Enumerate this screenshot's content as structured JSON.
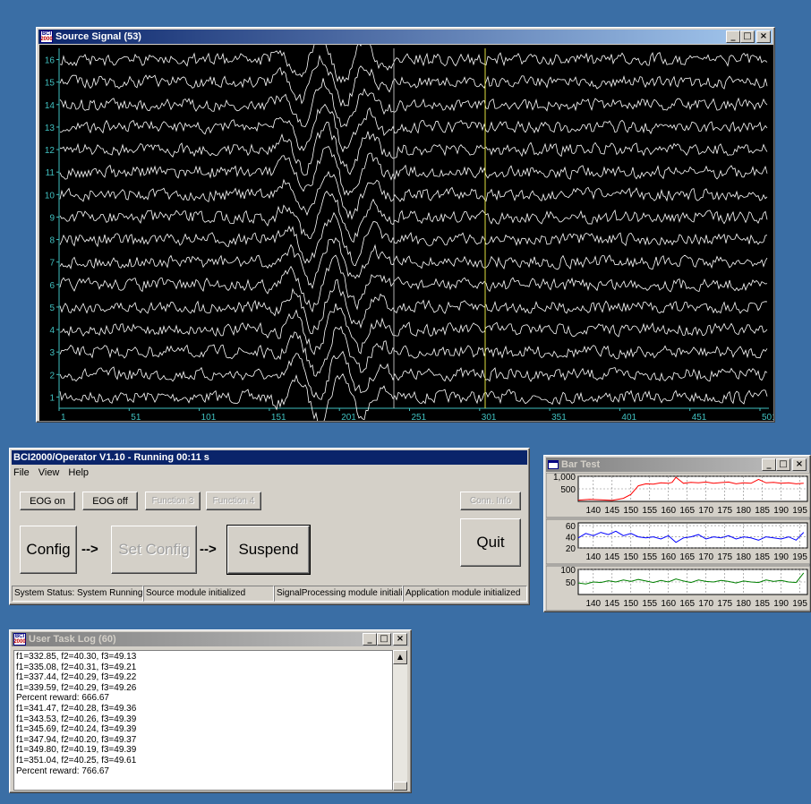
{
  "source_window": {
    "title": "Source Signal (53)",
    "channel_labels": [
      "1",
      "2",
      "3",
      "4",
      "5",
      "6",
      "7",
      "8",
      "9",
      "10",
      "11",
      "12",
      "13",
      "14",
      "15",
      "16"
    ],
    "sample_ticks": [
      "1",
      "51",
      "101",
      "151",
      "201",
      "251",
      "301",
      "351",
      "401",
      "451",
      "501"
    ],
    "trace_color": "#ffffff",
    "axis_color": "#40c0c0",
    "cursor_color": "#e0e040"
  },
  "operator_window": {
    "title": "BCI2000/Operator V1.10 - Running 00:11 s",
    "menu": [
      "File",
      "View",
      "Help"
    ],
    "buttons": {
      "eog_on": "EOG on",
      "eog_off": "EOG off",
      "function3": "Function 3",
      "function4": "Function 4",
      "conn_info": "Conn. Info",
      "config": "Config",
      "set_config": "Set Config",
      "suspend": "Suspend",
      "quit": "Quit",
      "arrow1": "-->",
      "arrow2": "-->"
    },
    "status": [
      "System Status: System Running",
      "Source module initialized",
      "SignalProcessing module initialized",
      "Application module initialized"
    ]
  },
  "log_window": {
    "title": "User Task Log (60)",
    "lines": [
      "f1=332.85, f2=40.30, f3=49.13",
      "f1=335.08, f2=40.31, f3=49.21",
      "f1=337.44, f2=40.29, f3=49.22",
      "f1=339.59, f2=40.29, f3=49.26",
      "Percent reward: 666.67",
      "f1=341.47, f2=40.28, f3=49.36",
      "f1=343.53, f2=40.26, f3=49.39",
      "f1=345.69, f2=40.24, f3=49.39",
      "f1=347.94, f2=40.20, f3=49.37",
      "f1=349.80, f2=40.19, f3=49.39",
      "f1=351.04, f2=40.25, f3=49.61",
      "Percent reward: 766.67"
    ]
  },
  "bar_window": {
    "title": "Bar Test",
    "x_ticks": [
      "140",
      "145",
      "150",
      "155",
      "160",
      "165",
      "170",
      "175",
      "180",
      "185",
      "190",
      "195"
    ]
  },
  "chart_data": [
    {
      "type": "line",
      "color": "#ff0000",
      "ylim": [
        0,
        1000
      ],
      "y_ticks": [
        "1,000",
        "500"
      ],
      "xlim": [
        136,
        197
      ],
      "series": [
        {
          "x": [
            136,
            139,
            142,
            145,
            148,
            150,
            152,
            154,
            156,
            158,
            160,
            161,
            162,
            164,
            166,
            168,
            170,
            172,
            174,
            176,
            178,
            180,
            182,
            184,
            186,
            188,
            190,
            192,
            194,
            196
          ],
          "values": [
            50,
            80,
            60,
            40,
            120,
            280,
            620,
            700,
            690,
            740,
            720,
            760,
            960,
            720,
            760,
            740,
            770,
            720,
            750,
            770,
            700,
            740,
            720,
            880,
            740,
            760,
            720,
            740,
            700,
            720
          ]
        }
      ]
    },
    {
      "type": "line",
      "color": "#0000ff",
      "ylim": [
        20,
        65
      ],
      "y_ticks": [
        "60",
        "40",
        "20"
      ],
      "xlim": [
        136,
        197
      ],
      "series": [
        {
          "x": [
            136,
            138,
            140,
            142,
            144,
            146,
            148,
            150,
            152,
            154,
            156,
            158,
            160,
            162,
            164,
            166,
            168,
            170,
            172,
            174,
            176,
            178,
            180,
            182,
            184,
            186,
            188,
            190,
            192,
            194,
            196
          ],
          "values": [
            38,
            46,
            42,
            48,
            44,
            50,
            42,
            46,
            40,
            38,
            40,
            36,
            42,
            30,
            38,
            40,
            44,
            36,
            40,
            38,
            42,
            36,
            40,
            38,
            34,
            40,
            38,
            36,
            40,
            34,
            48
          ]
        }
      ]
    },
    {
      "type": "line",
      "color": "#008000",
      "ylim": [
        0,
        100
      ],
      "y_ticks": [
        "100",
        "50"
      ],
      "xlim": [
        136,
        197
      ],
      "series": [
        {
          "x": [
            136,
            138,
            140,
            142,
            144,
            146,
            148,
            150,
            152,
            154,
            156,
            158,
            160,
            162,
            164,
            166,
            168,
            170,
            172,
            174,
            176,
            178,
            180,
            182,
            184,
            186,
            188,
            190,
            192,
            194,
            196
          ],
          "values": [
            46,
            42,
            50,
            48,
            55,
            50,
            58,
            52,
            60,
            54,
            48,
            56,
            50,
            62,
            54,
            48,
            58,
            52,
            50,
            56,
            52,
            46,
            54,
            50,
            48,
            58,
            52,
            56,
            50,
            48,
            86
          ]
        }
      ]
    }
  ]
}
